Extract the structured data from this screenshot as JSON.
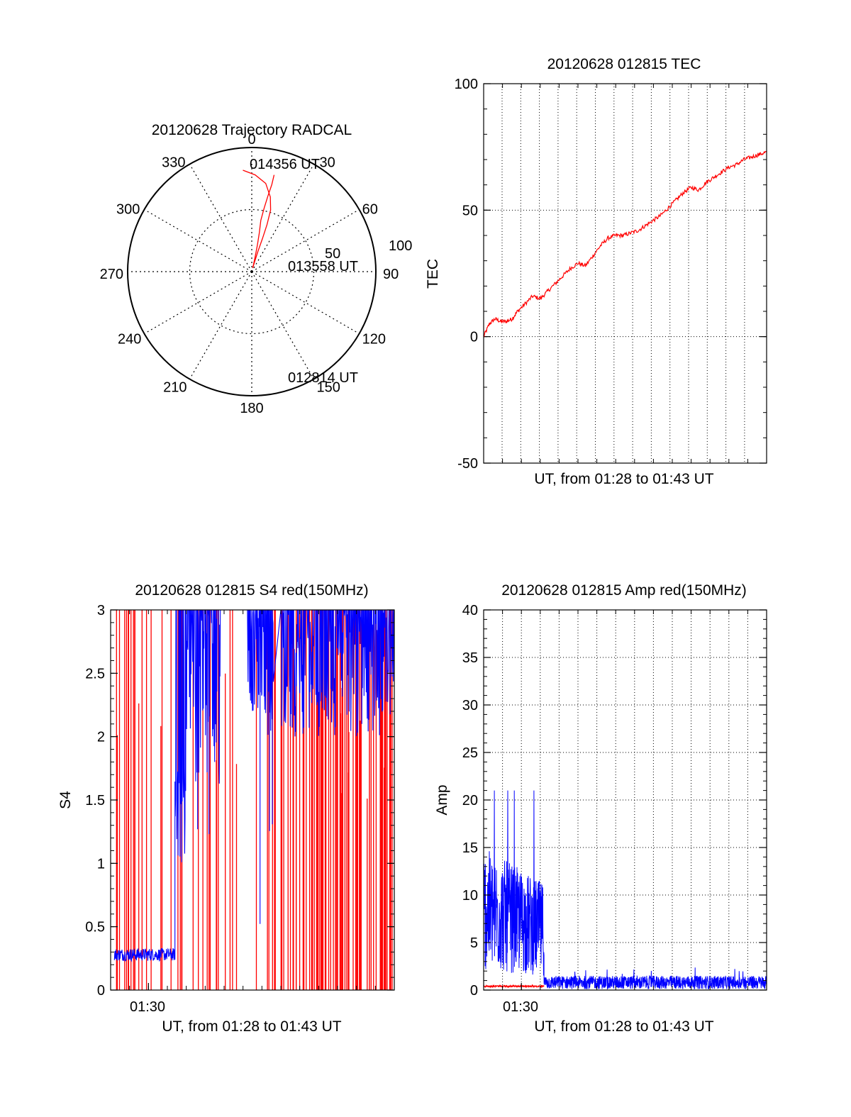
{
  "colors": {
    "red": "#ff0000",
    "blue": "#0000ff",
    "axis": "#000000",
    "grid": "#000000"
  },
  "chart_data": [
    {
      "id": "trajectory",
      "type": "polar",
      "title": "20120628 Trajectory RADCAL",
      "angle_labels": [
        "0",
        "30",
        "60",
        "90",
        "120",
        "150",
        "180",
        "210",
        "240",
        "270",
        "300",
        "330"
      ],
      "radius_labels": [
        "50",
        "100"
      ],
      "grid": true,
      "series": [
        {
          "color": "#ff0000",
          "points": [
            [
              355,
              82
            ],
            [
              2,
              78
            ],
            [
              9,
              72
            ],
            [
              14,
              62
            ],
            [
              17,
              52
            ],
            [
              18,
              40
            ],
            [
              18,
              28
            ],
            [
              17,
              17
            ],
            [
              16,
              8
            ],
            [
              15,
              3
            ],
            [
              13,
              12
            ],
            [
              12,
              22
            ],
            [
              11,
              32
            ],
            [
              10,
              42
            ],
            [
              11,
              52
            ],
            [
              12,
              62
            ],
            [
              13,
              72
            ],
            [
              13,
              80
            ]
          ]
        }
      ],
      "annotations": [
        {
          "text": "014356 UT",
          "at": [
            356,
            82
          ]
        },
        {
          "text": "013558 UT",
          "at": [
            63,
            24
          ]
        },
        {
          "text": "012814 UT",
          "at": [
            155,
            82
          ]
        }
      ]
    },
    {
      "id": "tec",
      "type": "line",
      "title": "20120628 012815 TEC",
      "xlabel": "UT, from 01:28 to 01:43 UT",
      "ylabel": "TEC",
      "xlim": [
        0,
        15
      ],
      "ylim": [
        -50,
        100
      ],
      "yticks": [
        "100",
        "50",
        "0",
        "-50"
      ],
      "xticks": [],
      "grid": true,
      "series": [
        {
          "color": "#ff0000",
          "points": [
            [
              0,
              0
            ],
            [
              0.3,
              5
            ],
            [
              0.6,
              7
            ],
            [
              0.9,
              6
            ],
            [
              1.2,
              6
            ],
            [
              1.5,
              7
            ],
            [
              1.8,
              10
            ],
            [
              2.2,
              13
            ],
            [
              2.6,
              16
            ],
            [
              3.0,
              15
            ],
            [
              3.4,
              18
            ],
            [
              3.8,
              21
            ],
            [
              4.2,
              24
            ],
            [
              4.6,
              27
            ],
            [
              5.0,
              29
            ],
            [
              5.4,
              28
            ],
            [
              5.8,
              32
            ],
            [
              6.2,
              36
            ],
            [
              6.6,
              39
            ],
            [
              7.0,
              40
            ],
            [
              7.4,
              40
            ],
            [
              7.8,
              41
            ],
            [
              8.2,
              42
            ],
            [
              8.6,
              44
            ],
            [
              9.0,
              46
            ],
            [
              9.4,
              48
            ],
            [
              9.8,
              51
            ],
            [
              10.2,
              54
            ],
            [
              10.6,
              57
            ],
            [
              11.0,
              59
            ],
            [
              11.4,
              58
            ],
            [
              11.8,
              61
            ],
            [
              12.2,
              63
            ],
            [
              12.6,
              65
            ],
            [
              13.0,
              67
            ],
            [
              13.4,
              68
            ],
            [
              13.8,
              70
            ],
            [
              14.2,
              71
            ],
            [
              14.6,
              72
            ],
            [
              15,
              73
            ]
          ]
        }
      ]
    },
    {
      "id": "s4",
      "type": "line",
      "title": "20120628 012815 S4 red(150MHz)",
      "xlabel": "UT, from 01:28 to 01:43 UT",
      "ylabel": "S4",
      "xlim": [
        0,
        15
      ],
      "ylim": [
        0,
        3
      ],
      "yticks": [
        "3",
        "2.5",
        "2",
        "1.5",
        "1",
        "0.5",
        "0"
      ],
      "xticks": [
        {
          "label": "01:30",
          "x": 2
        }
      ],
      "grid": false,
      "series": [
        {
          "color": "#0000ff",
          "description": "S4 blue",
          "segments": [
            {
              "x": [
                0.2,
                3.4
              ],
              "y_base": 0.28,
              "y_spread": 0.05
            },
            {
              "x": [
                3.4,
                4.0
              ],
              "y_base": 1.5,
              "y_spread": 0.5
            },
            {
              "x": [
                4.0,
                6.8
              ],
              "y_base": 2.3,
              "y_spread": 0.7
            },
            {
              "x": [
                6.8,
                8.2
              ],
              "y_base": 2.6,
              "y_spread": 0.4
            },
            {
              "x": [
                8.2,
                15
              ],
              "y_base": 2.5,
              "y_spread": 0.5
            }
          ],
          "dropouts": [
            [
              5.8,
              7.2
            ],
            [
              8.6,
              9.0
            ]
          ]
        },
        {
          "color": "#ff0000",
          "description": "S4 red spikes",
          "spike_regions": [
            {
              "x": [
                0.3,
                2.0
              ],
              "count": 14
            },
            {
              "x": [
                2.0,
                4.0
              ],
              "count": 8
            },
            {
              "x": [
                4.0,
                6.0
              ],
              "count": 10
            },
            {
              "x": [
                6.0,
                9.0
              ],
              "count": 10
            },
            {
              "x": [
                9.0,
                15.0
              ],
              "count": 90
            }
          ]
        }
      ]
    },
    {
      "id": "amp",
      "type": "line",
      "title": "20120628 012815 Amp red(150MHz)",
      "xlabel": "UT, from 01:28 to 01:43 UT",
      "ylabel": "Amp",
      "xlim": [
        0,
        15
      ],
      "ylim": [
        0,
        40
      ],
      "yticks": [
        "40",
        "35",
        "30",
        "25",
        "20",
        "15",
        "10",
        "5",
        "0"
      ],
      "xticks": [
        {
          "label": "01:30",
          "x": 2
        }
      ],
      "grid": true,
      "series": [
        {
          "color": "#0000ff",
          "description": "Amp blue",
          "segments": [
            {
              "x": [
                0,
                3.2
              ],
              "y_base": 8.5,
              "y_spread": 6.5,
              "peak": 21
            },
            {
              "x": [
                3.2,
                15
              ],
              "y_base": 0.8,
              "y_spread": 0.7,
              "peak": 2.5
            }
          ]
        },
        {
          "color": "#ff0000",
          "description": "Amp red",
          "segments": [
            {
              "x": [
                0,
                3.2
              ],
              "y_base": 0.4,
              "y_spread": 0.1,
              "peak": 0.5
            }
          ]
        }
      ]
    }
  ]
}
